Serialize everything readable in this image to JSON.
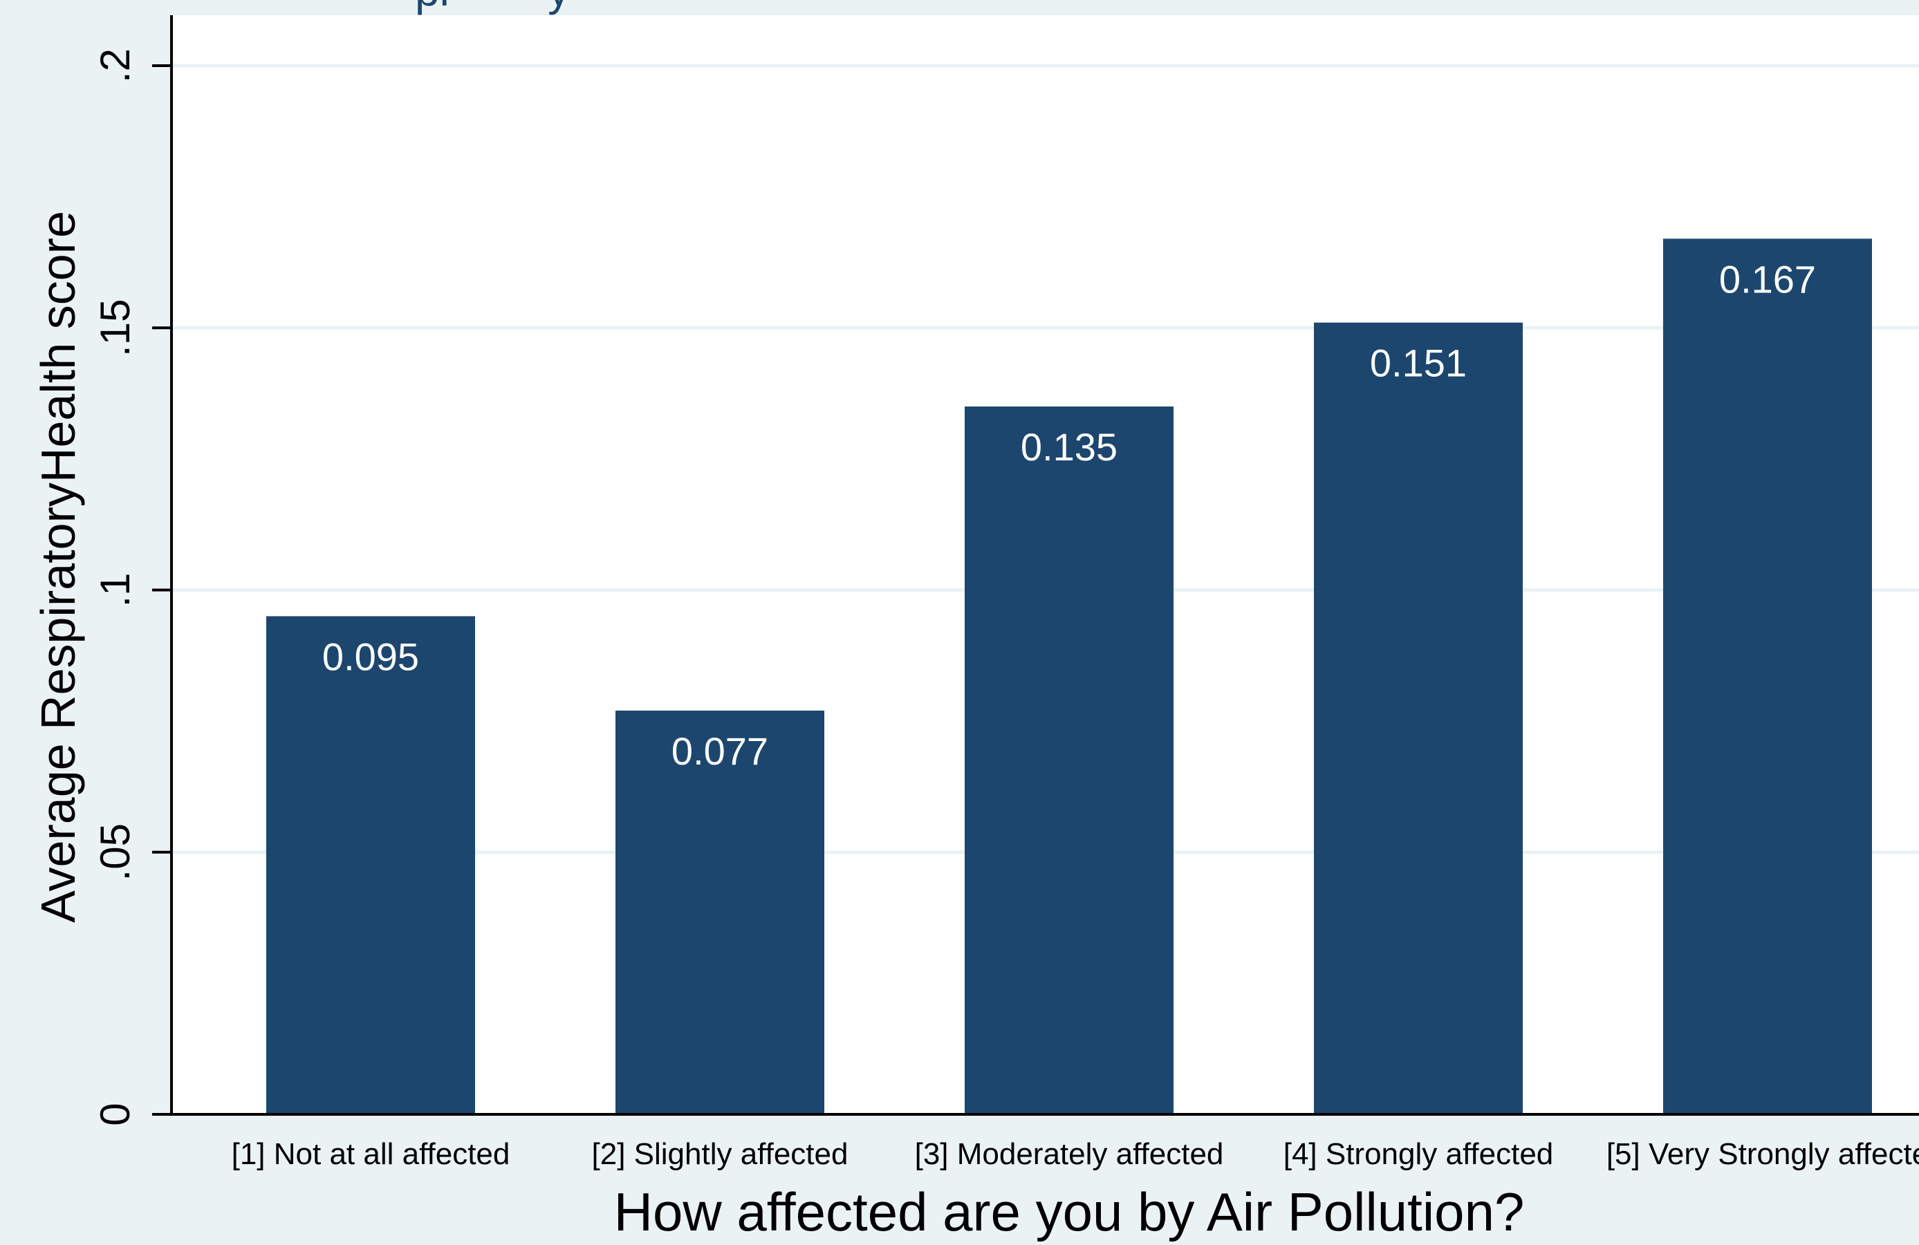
{
  "colors": {
    "outer_background": "#eaf2f3",
    "plot_background": "#ffffff",
    "bar_fill": "#1c466d",
    "bar_label_text": "#ffffff",
    "gridline": "#eaf2f3",
    "axis": "#000000",
    "text": "#000000",
    "title_text": "#1c466d"
  },
  "chart_data": {
    "type": "bar",
    "title_fragment": "pi        y",
    "categories": [
      "[1] Not at all affected",
      "[2] Slightly affected",
      "[3] Moderately affected",
      "[4] Strongly affected",
      "[5] Very Strongly affecte"
    ],
    "values": [
      0.095,
      0.077,
      0.135,
      0.151,
      0.167
    ],
    "data_labels": [
      "0.095",
      "0.077",
      "0.135",
      "0.151",
      "0.167"
    ],
    "xlabel": "How affected are you by Air Pollution?",
    "ylabel": "Average RespiratoryHealth score",
    "yticks": [
      0,
      0.05,
      0.1,
      0.15,
      0.2
    ],
    "ytick_labels": [
      "0",
      ".05",
      ".1",
      ".15",
      ".2"
    ],
    "ylim": [
      0,
      0.2
    ],
    "grid": true,
    "legend": "none"
  }
}
